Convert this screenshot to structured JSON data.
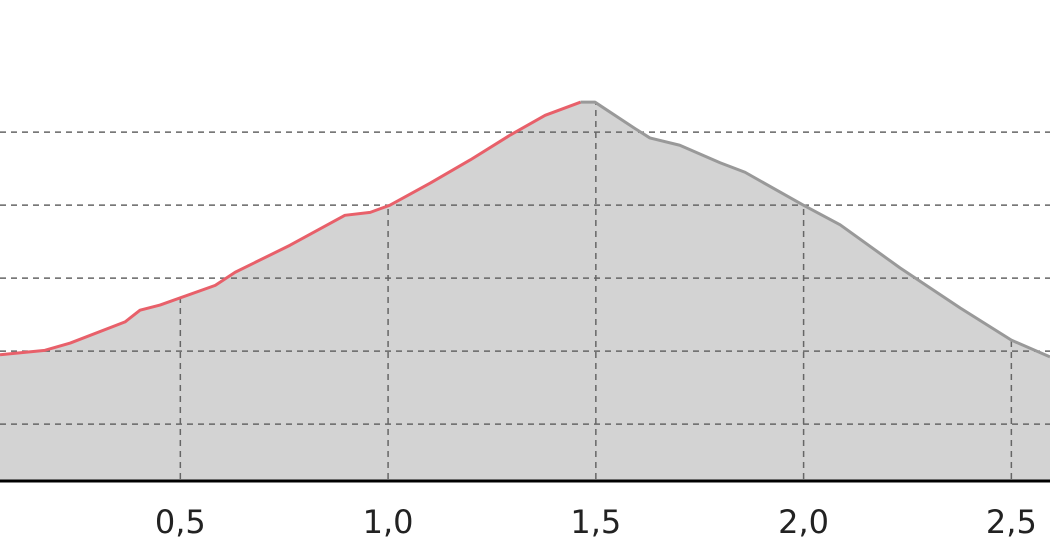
{
  "chart_data": {
    "type": "area",
    "series": [
      {
        "color": "#e8606a",
        "x": [
          0.066,
          0.174,
          0.235,
          0.367,
          0.403,
          0.451,
          0.584,
          0.632,
          0.764,
          0.896,
          0.957,
          1.005,
          1.101,
          1.198,
          1.294,
          1.378,
          1.463
        ],
        "values": [
          1.95,
          2.01,
          2.11,
          2.4,
          2.56,
          2.63,
          2.9,
          3.08,
          3.45,
          3.86,
          3.9,
          4.0,
          4.3,
          4.62,
          4.96,
          5.23,
          5.41
        ]
      },
      {
        "color": "#999999",
        "x": [
          1.463,
          1.498,
          1.594,
          1.63,
          1.702,
          1.799,
          1.859,
          1.999,
          2.088,
          2.232,
          2.377,
          2.5,
          2.593
        ],
        "values": [
          5.41,
          5.41,
          5.05,
          4.92,
          4.82,
          4.58,
          4.45,
          4.0,
          3.73,
          3.14,
          2.59,
          2.15,
          1.92
        ]
      }
    ],
    "area_color": "#d3d3d3",
    "xlim": [
      0.066,
      2.593
    ],
    "ylim": [
      0.22,
      6.81
    ],
    "xticks": [
      {
        "value": 0.5,
        "label": "0,5"
      },
      {
        "value": 1.0,
        "label": "1,0"
      },
      {
        "value": 1.5,
        "label": "1,5"
      },
      {
        "value": 2.0,
        "label": "2,0"
      },
      {
        "value": 2.5,
        "label": "2,5"
      }
    ],
    "yticks": [
      1,
      2,
      3,
      4,
      5
    ],
    "grid": true
  }
}
